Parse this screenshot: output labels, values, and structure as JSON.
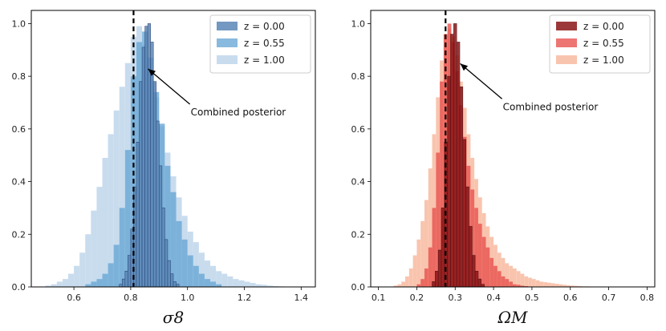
{
  "chart_data": [
    {
      "type": "histogram",
      "xlabel": "σ8",
      "xlim": [
        0.45,
        1.45
      ],
      "ylim": [
        0,
        1.05
      ],
      "xticks": [
        0.6,
        0.8,
        1.0,
        1.2,
        1.4
      ],
      "xtick_labels": [
        "0.6",
        "0.8",
        "1.0",
        "1.2",
        "1.4"
      ],
      "yticks": [
        0.0,
        0.2,
        0.4,
        0.6,
        0.8,
        1.0
      ],
      "ytick_labels": [
        "0.0",
        "0.2",
        "0.4",
        "0.6",
        "0.8",
        "1.0"
      ],
      "vline_x": 0.81,
      "legend_position": "top-right",
      "annotation": {
        "text": "Combined posterior",
        "points_to": [
          0.85,
          0.84
        ]
      },
      "series": [
        {
          "name": "z = 0.00",
          "color": "#5b86b6",
          "edge": "#1d3a6b",
          "bins": {
            "start": 0.76,
            "width": 0.01
          },
          "values": [
            0.01,
            0.03,
            0.06,
            0.12,
            0.22,
            0.38,
            0.55,
            0.78,
            0.91,
            0.99,
            1.0,
            0.93,
            0.78,
            0.63,
            0.46,
            0.3,
            0.18,
            0.1,
            0.05,
            0.02,
            0.01
          ]
        },
        {
          "name": "z = 0.55",
          "color": "#6aa8d6",
          "bins": {
            "start": 0.64,
            "width": 0.02
          },
          "values": [
            0.01,
            0.02,
            0.03,
            0.05,
            0.09,
            0.16,
            0.3,
            0.52,
            0.8,
            0.93,
            0.97,
            0.87,
            0.74,
            0.62,
            0.46,
            0.36,
            0.25,
            0.18,
            0.12,
            0.08,
            0.05,
            0.03,
            0.02,
            0.01
          ]
        },
        {
          "name": "z = 1.00",
          "color": "#c8dcee",
          "bins": {
            "start": 0.5,
            "width": 0.02
          },
          "values": [
            0.005,
            0.01,
            0.02,
            0.03,
            0.05,
            0.08,
            0.13,
            0.2,
            0.29,
            0.38,
            0.49,
            0.58,
            0.67,
            0.76,
            0.85,
            0.95,
            0.99,
            0.92,
            0.82,
            0.72,
            0.61,
            0.51,
            0.42,
            0.34,
            0.27,
            0.21,
            0.17,
            0.13,
            0.1,
            0.08,
            0.06,
            0.05,
            0.04,
            0.03,
            0.025,
            0.02,
            0.015,
            0.01,
            0.008,
            0.005,
            0.003,
            0.002
          ]
        }
      ]
    },
    {
      "type": "histogram",
      "xlabel": "ΩM",
      "xlim": [
        0.08,
        0.82
      ],
      "ylim": [
        0,
        1.05
      ],
      "xticks": [
        0.1,
        0.2,
        0.3,
        0.4,
        0.5,
        0.6,
        0.7,
        0.8
      ],
      "xtick_labels": [
        "0.1",
        "0.2",
        "0.3",
        "0.4",
        "0.5",
        "0.6",
        "0.7",
        "0.8"
      ],
      "yticks": [
        0.0,
        0.2,
        0.4,
        0.6,
        0.8,
        1.0
      ],
      "ytick_labels": [
        "0.0",
        "0.2",
        "0.4",
        "0.6",
        "0.8",
        "1.0"
      ],
      "vline_x": 0.275,
      "legend_position": "top-right",
      "annotation": {
        "text": "Combined posterior",
        "points_to": [
          0.305,
          0.86
        ]
      },
      "series": [
        {
          "name": "z = 0.00",
          "color": "#8b1518",
          "edge": "#3d0608",
          "bins": {
            "start": 0.24,
            "width": 0.008
          },
          "values": [
            0.02,
            0.06,
            0.14,
            0.3,
            0.55,
            0.8,
            0.96,
            1.0,
            0.93,
            0.76,
            0.56,
            0.38,
            0.23,
            0.12,
            0.06,
            0.03,
            0.01
          ]
        },
        {
          "name": "z = 0.55",
          "color": "#e8534f",
          "bins": {
            "start": 0.2,
            "width": 0.01
          },
          "values": [
            0.01,
            0.03,
            0.07,
            0.15,
            0.3,
            0.51,
            0.78,
            0.96,
            1.0,
            0.93,
            0.82,
            0.69,
            0.57,
            0.46,
            0.37,
            0.3,
            0.24,
            0.19,
            0.15,
            0.11,
            0.08,
            0.06,
            0.04,
            0.03,
            0.02,
            0.01,
            0.008,
            0.005,
            0.003
          ]
        },
        {
          "name": "z = 1.00",
          "color": "#f9c4ae",
          "bins": {
            "start": 0.14,
            "width": 0.01
          },
          "values": [
            0.005,
            0.01,
            0.02,
            0.04,
            0.07,
            0.12,
            0.18,
            0.25,
            0.33,
            0.45,
            0.58,
            0.72,
            0.86,
            0.96,
            0.98,
            0.95,
            0.88,
            0.78,
            0.68,
            0.58,
            0.49,
            0.41,
            0.34,
            0.28,
            0.23,
            0.19,
            0.16,
            0.13,
            0.11,
            0.09,
            0.08,
            0.07,
            0.06,
            0.05,
            0.04,
            0.035,
            0.03,
            0.025,
            0.02,
            0.018,
            0.016,
            0.014,
            0.012,
            0.01,
            0.008,
            0.006,
            0.005,
            0.004,
            0.003,
            0.002,
            0.002,
            0.001,
            0.001,
            0.001,
            0.001,
            0.001
          ]
        }
      ]
    }
  ]
}
